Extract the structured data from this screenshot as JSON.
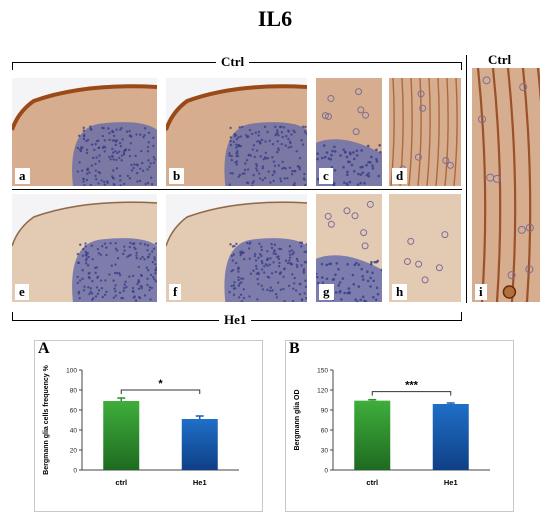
{
  "figure": {
    "title": "IL6",
    "group_top": "Ctrl",
    "group_right": "Ctrl",
    "group_bottom": "He1"
  },
  "panels": [
    {
      "label": "a",
      "stain": "strong",
      "gcl": true
    },
    {
      "label": "b",
      "stain": "strong",
      "gcl": true
    },
    {
      "label": "c",
      "stain": "strong",
      "gcl": true
    },
    {
      "label": "d",
      "stain": "strong",
      "gcl": false
    },
    {
      "label": "e",
      "stain": "weak",
      "gcl": true
    },
    {
      "label": "f",
      "stain": "weak",
      "gcl": true
    },
    {
      "label": "g",
      "stain": "weak",
      "gcl": true
    },
    {
      "label": "h",
      "stain": "weak",
      "gcl": false
    },
    {
      "label": "i",
      "stain": "strong",
      "gcl": false
    }
  ],
  "chart_data": [
    {
      "panel": "A",
      "type": "bar",
      "categories": [
        "ctrl",
        "He1"
      ],
      "values": [
        69,
        51
      ],
      "errors": [
        3,
        3
      ],
      "ylabel": "Bergmann glia cells frequency %",
      "ylim": [
        0,
        100
      ],
      "yticks": [
        "0",
        "20",
        "40",
        "60",
        "80",
        "100"
      ],
      "significance": "*",
      "grid": false,
      "colors": [
        "#3fae3c",
        "#1f6fc8"
      ]
    },
    {
      "panel": "B",
      "type": "bar",
      "categories": [
        "ctrl",
        "He1"
      ],
      "values": [
        104,
        99
      ],
      "errors": [
        1.5,
        1.5
      ],
      "ylabel": "Bergmann glia OD",
      "ylim": [
        0,
        150
      ],
      "yticks": [
        "0",
        "30",
        "60",
        "90",
        "120",
        "150"
      ],
      "significance": "***",
      "grid": false,
      "colors": [
        "#3fae3c",
        "#1f6fc8"
      ]
    }
  ]
}
